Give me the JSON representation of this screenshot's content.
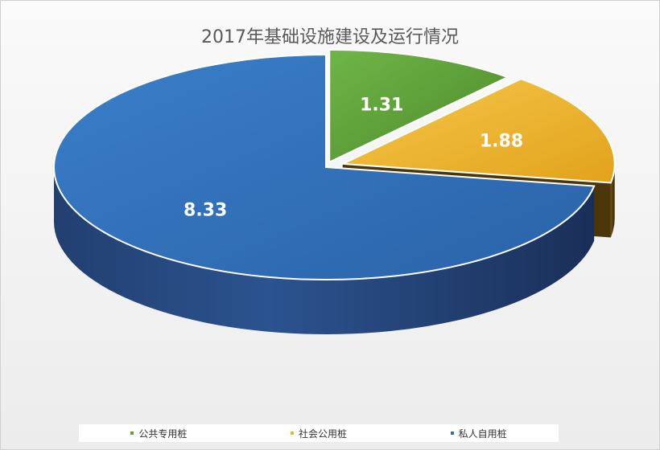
{
  "chart_data": {
    "type": "pie",
    "title": "2017年基础设施建设及运行情况",
    "categories": [
      "公共专用桩",
      "社会公用桩",
      "私人自用桩"
    ],
    "values": [
      1.31,
      1.88,
      8.33
    ],
    "data_labels": [
      "1.31",
      "1.88",
      "8.33"
    ],
    "colors": [
      "#5fa035",
      "#f0b429",
      "#2f6fb7"
    ],
    "legend_position": "bottom",
    "exploded": true,
    "three_d": true
  }
}
